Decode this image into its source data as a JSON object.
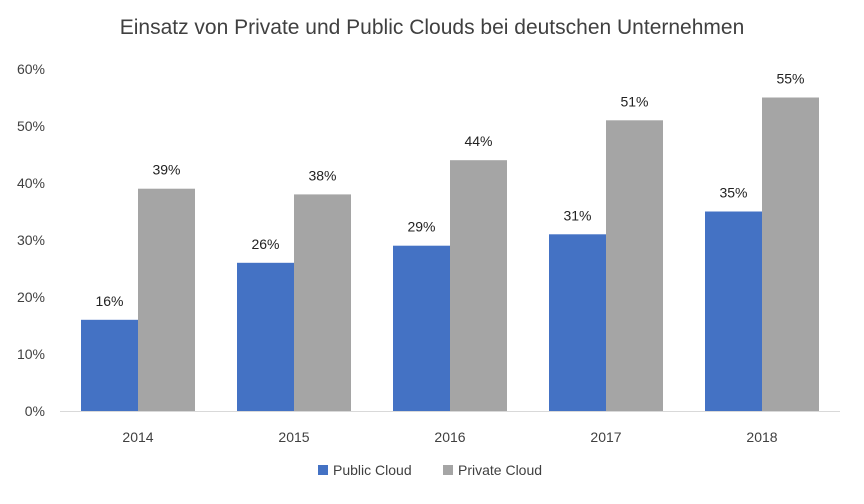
{
  "chart_data": {
    "type": "bar",
    "title": "Einsatz von Private und Public Clouds bei deutschen Unternehmen",
    "categories": [
      "2014",
      "2015",
      "2016",
      "2017",
      "2018"
    ],
    "series": [
      {
        "name": "Public Cloud",
        "color": "#4472C4",
        "values": [
          16,
          26,
          29,
          31,
          35
        ],
        "labels": [
          "16%",
          "26%",
          "29%",
          "31%",
          "35%"
        ]
      },
      {
        "name": "Private Cloud",
        "color": "#A5A5A5",
        "values": [
          39,
          38,
          44,
          51,
          55
        ],
        "labels": [
          "39%",
          "38%",
          "44%",
          "51%",
          "55%"
        ]
      }
    ],
    "y_ticks": [
      "0%",
      "10%",
      "20%",
      "30%",
      "40%",
      "50%",
      "60%"
    ],
    "ylim": [
      0,
      60
    ],
    "grid": false,
    "legend_position": "bottom-center"
  }
}
